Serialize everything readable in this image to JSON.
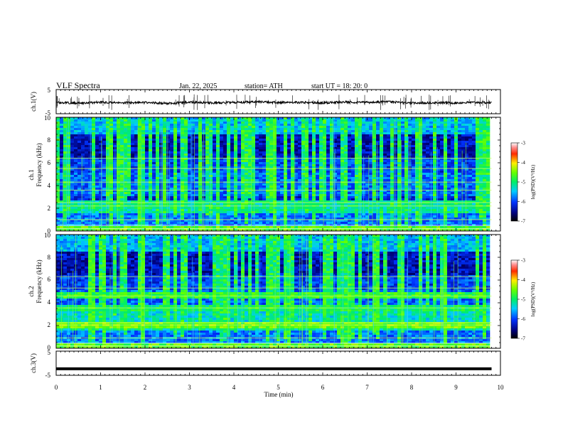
{
  "header": {
    "title": "VLF  Spectra",
    "date": "Jan. 22, 2025",
    "station": "station= ATH",
    "start": "start  UT  =    18: 20: 0"
  },
  "chart_data": [
    {
      "type": "line",
      "panel": "ch1-waveform",
      "ylabel": "ch.1(V)",
      "ylim": [
        -5,
        5
      ],
      "yticks": [
        "5",
        "-5"
      ],
      "xlim": [
        0,
        10
      ],
      "series": [
        {
          "x": [
            0,
            0.5,
            1,
            1.5,
            2,
            2.5,
            3,
            3.5,
            4,
            4.5,
            5,
            5.5,
            6,
            6.5,
            7,
            7.5,
            8,
            8.5,
            9,
            9.5,
            9.8
          ],
          "values": [
            -0.3,
            -0.6,
            -0.3,
            -0.5,
            -0.4,
            -0.7,
            -0.2,
            -0.5,
            -0.3,
            -0.1,
            -0.4,
            -0.3,
            -0.5,
            -0.2,
            -0.3,
            -0.1,
            -0.6,
            -0.4,
            -0.5,
            -0.3,
            -0.5
          ]
        }
      ]
    },
    {
      "type": "heatmap",
      "panel": "ch1-spectrogram",
      "ylabel": "ch.1\nFrequency (kHz)",
      "yticks": [
        "0",
        "2",
        "4",
        "6",
        "8",
        "10"
      ],
      "ylim": [
        0,
        10
      ],
      "xlim": [
        0,
        9.8
      ],
      "colorbar": {
        "label": "log(PSD)(V²/Hz)",
        "ticks": [
          "-3",
          "-4",
          "-5",
          "-6",
          "-7"
        ],
        "range": [
          -7,
          -3
        ]
      }
    },
    {
      "type": "heatmap",
      "panel": "ch2-spectrogram",
      "ylabel": "ch.2\nFrequency (kHz)",
      "yticks": [
        "0",
        "2",
        "4",
        "6",
        "8",
        "10"
      ],
      "ylim": [
        0,
        10
      ],
      "xlim": [
        0,
        9.8
      ],
      "colorbar": {
        "label": "log(PSD)(V²/Hz)",
        "ticks": [
          "-3",
          "-4",
          "-5",
          "-6",
          "-7"
        ],
        "range": [
          -7,
          -3
        ]
      }
    },
    {
      "type": "line",
      "panel": "ch3-waveform",
      "ylabel": "ch.3(V)",
      "ylim": [
        -5,
        5
      ],
      "yticks": [
        "5",
        "-5"
      ],
      "xlim": [
        0,
        10
      ],
      "series": [
        {
          "x": [
            0,
            9.8
          ],
          "values": [
            -2.3,
            -2.3
          ]
        }
      ]
    }
  ],
  "xaxis": {
    "label": "Time  (min)",
    "ticks": [
      "0",
      "1",
      "2",
      "3",
      "4",
      "5",
      "6",
      "7",
      "8",
      "9",
      "10"
    ],
    "range": [
      0,
      10
    ]
  }
}
